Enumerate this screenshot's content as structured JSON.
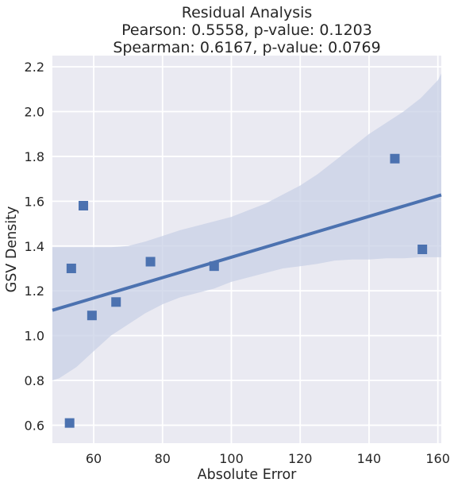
{
  "chart_data": {
    "type": "scatter",
    "title": [
      "Residual Analysis",
      "Pearson: 0.5558, p-value: 0.1203",
      "Spearman: 0.6167, p-value: 0.0769"
    ],
    "xlabel": "Absolute Error",
    "ylabel": "GSV Density",
    "xlim": [
      48,
      161
    ],
    "ylim": [
      0.52,
      2.25
    ],
    "xticks": [
      60,
      80,
      100,
      120,
      140,
      160
    ],
    "yticks": [
      0.6,
      0.8,
      1.0,
      1.2,
      1.4,
      1.6,
      1.8,
      2.0,
      2.2
    ],
    "xtick_labels": [
      "60",
      "80",
      "100",
      "120",
      "140",
      "160"
    ],
    "ytick_labels": [
      "0.6",
      "0.8",
      "1.0",
      "1.2",
      "1.4",
      "1.6",
      "1.8",
      "2.0",
      "2.2"
    ],
    "grid": true,
    "points": [
      {
        "x": 53.0,
        "y": 0.61
      },
      {
        "x": 53.5,
        "y": 1.3
      },
      {
        "x": 57.0,
        "y": 1.58
      },
      {
        "x": 59.5,
        "y": 1.09
      },
      {
        "x": 66.5,
        "y": 1.15
      },
      {
        "x": 76.5,
        "y": 1.33
      },
      {
        "x": 95.0,
        "y": 1.31
      },
      {
        "x": 147.5,
        "y": 1.79
      },
      {
        "x": 155.5,
        "y": 1.385
      }
    ],
    "regression": {
      "x": [
        48,
        161
      ],
      "y": [
        1.113,
        1.628
      ]
    },
    "confidence_band": {
      "x": [
        48,
        50,
        55,
        60,
        65,
        70,
        75,
        80,
        85,
        90,
        95,
        100,
        105,
        110,
        115,
        120,
        125,
        130,
        135,
        140,
        145,
        150,
        155,
        160,
        161
      ],
      "upper": [
        1.395,
        1.395,
        1.395,
        1.395,
        1.395,
        1.4,
        1.42,
        1.445,
        1.47,
        1.49,
        1.51,
        1.53,
        1.56,
        1.59,
        1.63,
        1.67,
        1.72,
        1.78,
        1.84,
        1.9,
        1.95,
        2.0,
        2.06,
        2.14,
        2.17
      ],
      "lower": [
        0.8,
        0.81,
        0.86,
        0.93,
        1.0,
        1.05,
        1.1,
        1.14,
        1.17,
        1.19,
        1.21,
        1.24,
        1.26,
        1.28,
        1.3,
        1.31,
        1.32,
        1.335,
        1.34,
        1.34,
        1.345,
        1.345,
        1.35,
        1.35,
        1.35
      ]
    },
    "colors": {
      "background": "#eaeaf2",
      "grid": "#ffffff",
      "marker": "#4c72b0",
      "line": "#4c72b0",
      "band": "#c8d0e6"
    },
    "marker": "square"
  }
}
